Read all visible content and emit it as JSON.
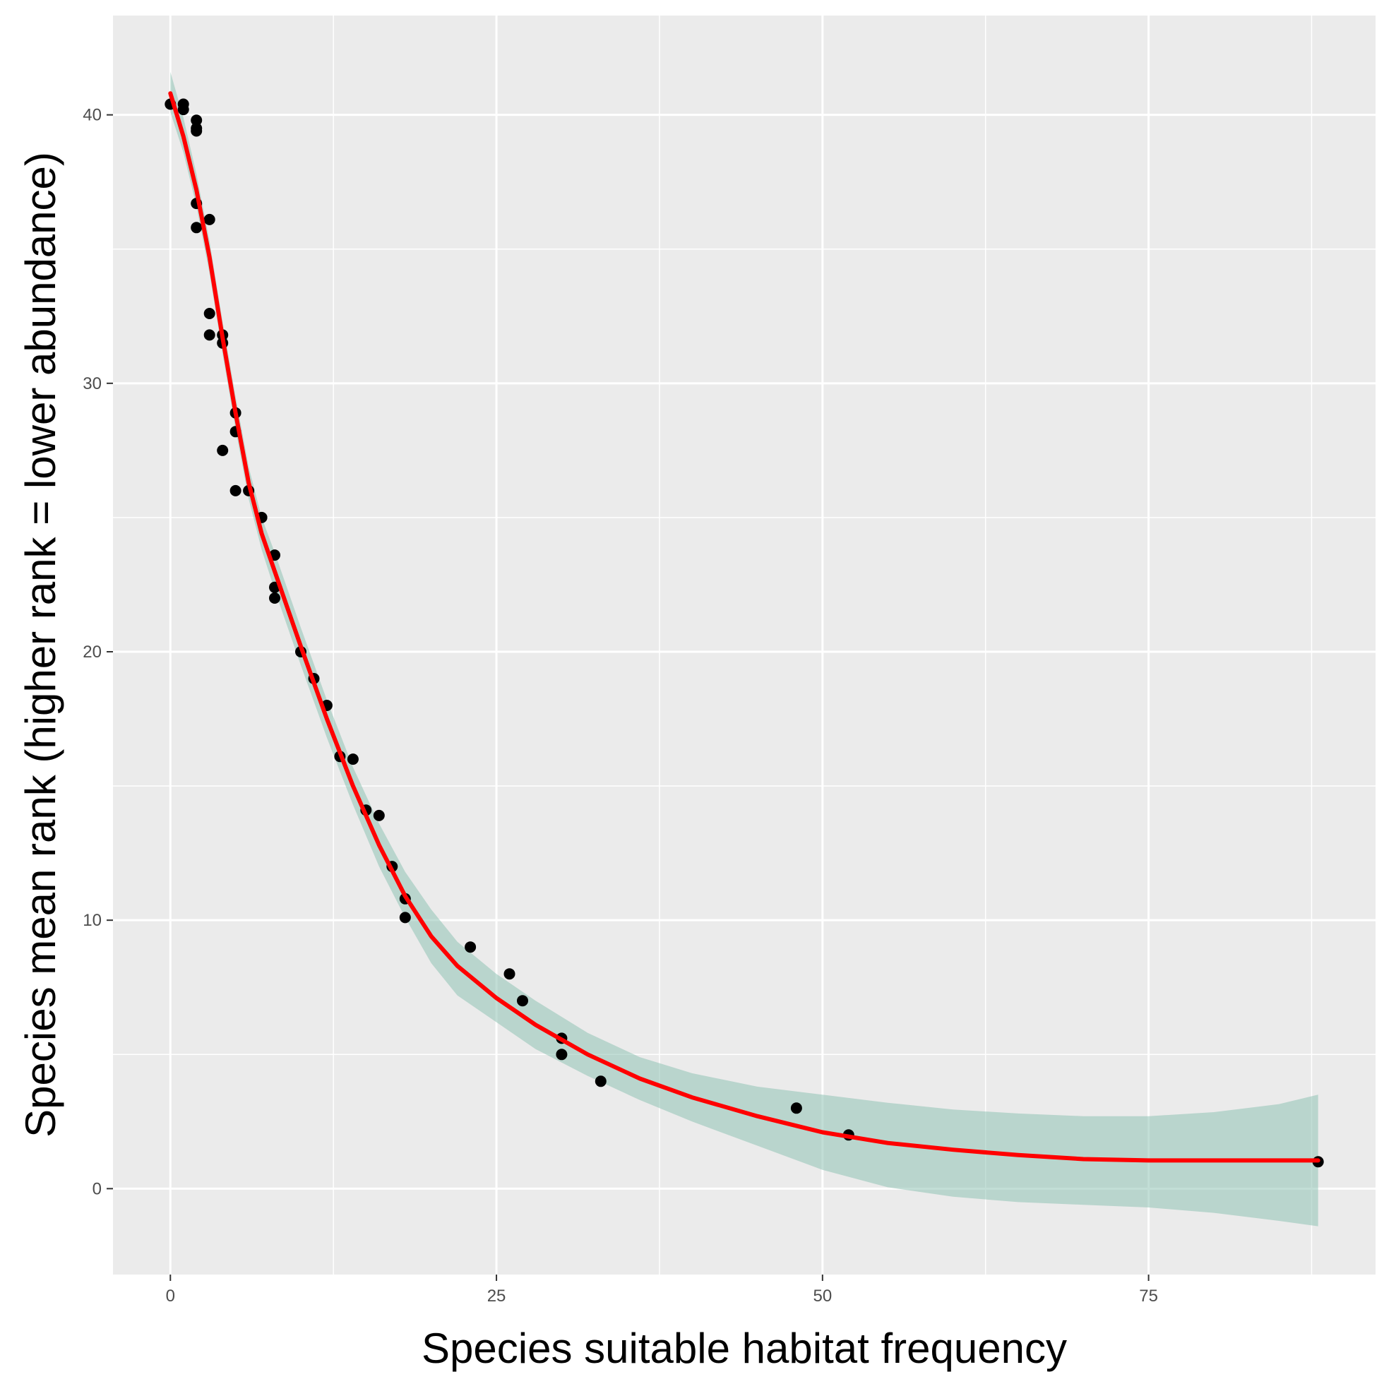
{
  "chart_data": {
    "type": "scatter",
    "title": "",
    "xlabel": "Species suitable habitat frequency",
    "ylabel": "Species mean rank (higher rank = lower abundance)",
    "xlim": [
      -4.4,
      92.4
    ],
    "ylim": [
      -3.2,
      43.7
    ],
    "x_ticks": [
      0,
      25,
      50,
      75
    ],
    "y_ticks": [
      0,
      10,
      20,
      30,
      40
    ],
    "x_tick_labels": [
      "0",
      "25",
      "50",
      "75"
    ],
    "y_tick_labels": [
      "0",
      "10",
      "20",
      "30",
      "40"
    ],
    "grid": true,
    "legend": "none",
    "colors": {
      "panel": "#ebebeb",
      "grid": "#ffffff",
      "point": "#000000",
      "fit_line": "#ff0000",
      "ribbon": "#8fc2b5"
    },
    "series": [
      {
        "type": "points",
        "x": [
          0,
          1,
          1,
          2,
          2,
          2,
          2,
          2,
          3,
          3,
          3,
          4,
          4,
          4,
          5,
          5,
          5,
          6,
          7,
          8,
          8,
          8,
          10,
          11,
          12,
          13,
          14,
          15,
          16,
          17,
          18,
          18,
          23,
          26,
          27,
          30,
          30,
          33,
          48,
          52,
          88
        ],
        "y": [
          40.4,
          40.4,
          40.2,
          39.8,
          39.5,
          39.4,
          36.7,
          35.8,
          36.1,
          32.6,
          31.8,
          31.8,
          31.5,
          27.5,
          28.9,
          28.2,
          26.0,
          26.0,
          25.0,
          23.6,
          22.4,
          22.0,
          20.0,
          19.0,
          18.0,
          16.1,
          16.0,
          14.1,
          13.9,
          12.0,
          10.8,
          10.1,
          9.0,
          8.0,
          7.0,
          5.6,
          5.0,
          4.0,
          3.0,
          2.0,
          1.0
        ]
      },
      {
        "type": "smooth",
        "x": [
          0,
          1,
          2,
          3,
          4,
          5,
          6,
          7,
          8,
          10,
          12,
          14,
          16,
          18,
          20,
          22,
          25,
          28,
          32,
          36,
          40,
          45,
          50,
          55,
          60,
          65,
          70,
          75,
          80,
          85,
          88
        ],
        "y": [
          40.8,
          39.2,
          37.2,
          34.7,
          31.7,
          28.9,
          26.3,
          24.4,
          23.0,
          20.2,
          17.5,
          15.0,
          12.8,
          10.9,
          9.4,
          8.3,
          7.1,
          6.1,
          5.0,
          4.1,
          3.4,
          2.7,
          2.1,
          1.7,
          1.45,
          1.25,
          1.1,
          1.05,
          1.05,
          1.05,
          1.05
        ],
        "ci_lower": [
          40.1,
          38.6,
          36.6,
          34.1,
          31.1,
          28.3,
          25.7,
          23.8,
          22.3,
          19.5,
          16.8,
          14.3,
          12.0,
          10.1,
          8.4,
          7.2,
          6.2,
          5.2,
          4.2,
          3.3,
          2.5,
          1.6,
          0.7,
          0.05,
          -0.3,
          -0.5,
          -0.6,
          -0.7,
          -0.9,
          -1.2,
          -1.4
        ],
        "ci_upper": [
          41.6,
          39.9,
          37.8,
          35.3,
          32.3,
          29.5,
          26.9,
          25.0,
          23.7,
          20.9,
          18.2,
          15.7,
          13.6,
          11.8,
          10.4,
          9.2,
          8.0,
          7.0,
          5.8,
          4.9,
          4.3,
          3.8,
          3.5,
          3.2,
          2.95,
          2.8,
          2.7,
          2.7,
          2.85,
          3.15,
          3.5
        ]
      }
    ]
  }
}
